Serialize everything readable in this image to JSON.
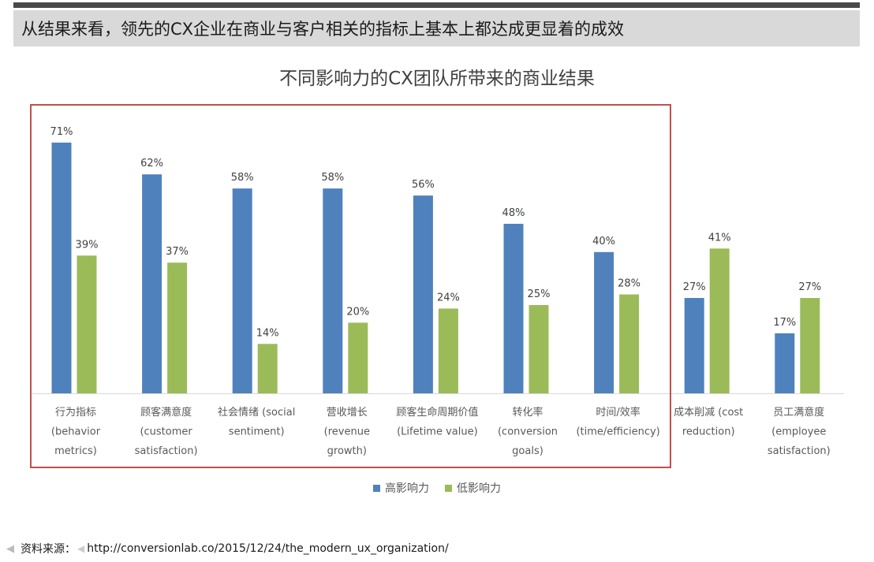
{
  "headline": "从结果来看，领先的CX企业在商业与客户相关的指标上基本上都达成更显着的成效",
  "source": {
    "label": "资料来源：",
    "url": "http://conversionlab.co/2015/12/24/the_modern_ux_organization/"
  },
  "colors": {
    "series_high": "#4f81bd",
    "series_low": "#9bbb59",
    "highlight_border": "#c0504d"
  },
  "chart_data": {
    "type": "bar",
    "title": "不同影响力的CX团队所带来的商业结果",
    "categories": [
      [
        "行为指标",
        "(behavior",
        "metrics)"
      ],
      [
        "顾客满意度",
        "(customer",
        "satisfaction)"
      ],
      [
        "社会情绪 (social",
        "sentiment)"
      ],
      [
        "营收增长",
        "(revenue",
        "growth)"
      ],
      [
        "顾客生命周期价值",
        "(Lifetime value)"
      ],
      [
        "转化率",
        "(conversion",
        "goals)"
      ],
      [
        "时间/效率",
        "(time/efficiency)"
      ],
      [
        "成本削减 (cost",
        "reduction)"
      ],
      [
        "员工满意度",
        "(employee",
        "satisfaction)"
      ]
    ],
    "series": [
      {
        "name": "高影响力",
        "values": [
          71,
          62,
          58,
          58,
          56,
          48,
          40,
          27,
          17
        ]
      },
      {
        "name": "低影响力",
        "values": [
          39,
          37,
          14,
          20,
          24,
          25,
          28,
          41,
          27
        ]
      }
    ],
    "data_labels": {
      "high": [
        "71%",
        "62%",
        "58%",
        "58%",
        "56%",
        "48%",
        "40%",
        "27%",
        "17%"
      ],
      "low": [
        "39%",
        "37%",
        "14%",
        "20%",
        "24%",
        "25%",
        "28%",
        "41%",
        "27%"
      ]
    },
    "ylim": [
      0,
      75
    ],
    "grid": false,
    "legend_position": "bottom",
    "highlighted_categories": 7
  }
}
